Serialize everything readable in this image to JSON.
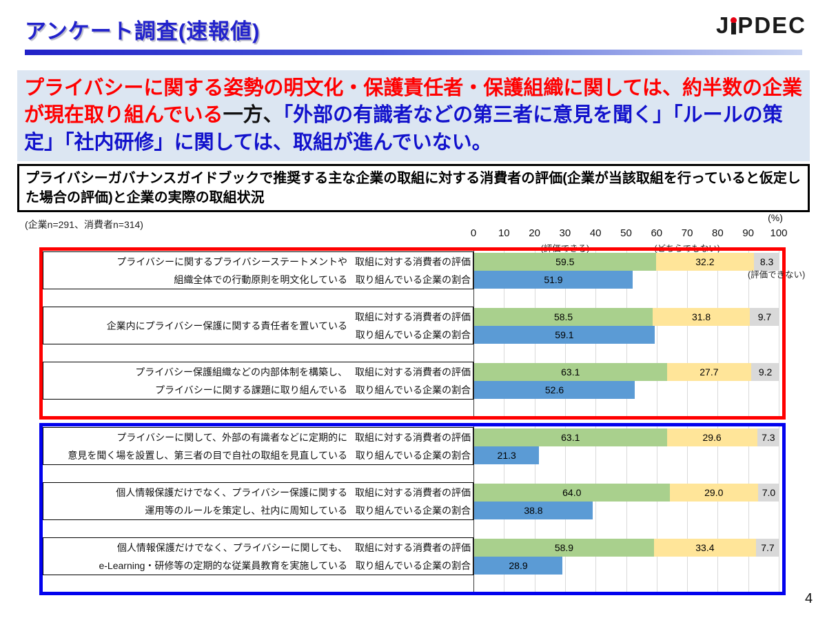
{
  "header": {
    "title": "アンケート調査(速報値)",
    "logo": {
      "prefix": "J",
      "suffix": "PDEC"
    }
  },
  "summary": {
    "red_text": "プライバシーに関する姿勢の明文化・保護責任者・保護組織に関しては、約半数の企業が現在取り組んでいる",
    "black_text": "一方、",
    "blue_text": "「外部の有識者などの第三者に意見を聞く」「ルールの策定」「社内研修」に関しては、取組が進んでいない。"
  },
  "chart_title": "プライバシーガバナンスガイドブックで推奨する主な企業の取組に対する消費者の評価(企業が当該取組を行っていると仮定した場合の評価)と企業の実際の取組状況",
  "sample_note": "(企業n=291、消費者n=314)",
  "percent_label": "(%)",
  "page_number": "4",
  "chart_data": {
    "type": "bar",
    "orientation": "horizontal-stacked",
    "unit": "%",
    "xlim": [
      0,
      100
    ],
    "ticks": [
      0,
      10,
      20,
      30,
      40,
      50,
      60,
      70,
      80,
      90,
      100
    ],
    "tick_sublabels": [
      {
        "text": "(評価できる)",
        "x": 30
      },
      {
        "text": "(どちらでもない)",
        "x": 70
      }
    ],
    "negative_annotation": {
      "text": "(評価できない)",
      "x": 96
    },
    "row_labels": {
      "consumer": "取組に対する消費者の評価",
      "company": "取り組んでいる企業の割合"
    },
    "series": [
      {
        "name": "評価できる",
        "color": "#A9D08D"
      },
      {
        "name": "どちらでもない",
        "color": "#FFE599"
      },
      {
        "name": "評価できない",
        "color": "#D9D9D9"
      },
      {
        "name": "取り組んでいる企業の割合",
        "color": "#5B9BD5"
      }
    ],
    "frame_colors": {
      "red_section": "#FF0000",
      "blue_section": "#0202EE"
    },
    "groups": [
      {
        "section": "red",
        "label_lines": [
          "プライバシーに関するプライバシーステートメントや",
          "組織全体での行動原則を明文化している"
        ],
        "consumer": [
          59.5,
          32.2,
          8.3
        ],
        "company": 51.9
      },
      {
        "section": "red",
        "label_lines": [
          "企業内にプライバシー保護に関する責任者を置いている"
        ],
        "consumer": [
          58.5,
          31.8,
          9.7
        ],
        "company": 59.1
      },
      {
        "section": "red",
        "label_lines": [
          "プライバシー保護組織などの内部体制を構築し、",
          "プライバシーに関する課題に取り組んでいる"
        ],
        "consumer": [
          63.1,
          27.7,
          9.2
        ],
        "company": 52.6
      },
      {
        "section": "blue",
        "label_lines": [
          "プライバシーに関して、外部の有識者などに定期的に",
          "意見を聞く場を設置し、第三者の目で自社の取組を見直している"
        ],
        "consumer": [
          63.1,
          29.6,
          7.3
        ],
        "company": 21.3
      },
      {
        "section": "blue",
        "label_lines": [
          "個人情報保護だけでなく、プライバシー保護に関する",
          "運用等のルールを策定し、社内に周知している"
        ],
        "consumer": [
          64.0,
          29.0,
          7.0
        ],
        "company": 38.8
      },
      {
        "section": "blue",
        "label_lines": [
          "個人情報保護だけでなく、プライバシーに関しても、",
          "e-Learning・研修等の定期的な従業員教育を実施している"
        ],
        "consumer": [
          58.9,
          33.4,
          7.7
        ],
        "company": 28.9
      }
    ]
  }
}
